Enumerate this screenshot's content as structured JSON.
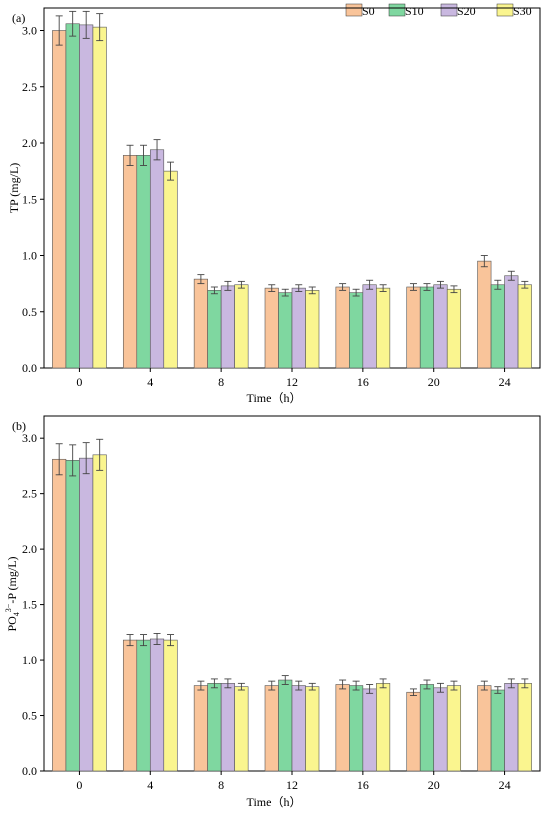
{
  "legend": {
    "items": [
      "S0",
      "S10",
      "S20",
      "S30"
    ],
    "colors": [
      "#F9C49A",
      "#7FD7A0",
      "#C9B8E0",
      "#FAF58F"
    ]
  },
  "chart_data": [
    {
      "type": "bar",
      "panel_label": "(a)",
      "xlabel": "Time（h）",
      "ylabel": "TP (mg/L)",
      "categories": [
        "0",
        "4",
        "8",
        "12",
        "16",
        "20",
        "24"
      ],
      "ylim": [
        0,
        3.2
      ],
      "yticks": [
        "0.0",
        "0.5",
        "1.0",
        "1.5",
        "2.0",
        "2.5",
        "3.0"
      ],
      "series": [
        {
          "name": "S0",
          "values": [
            3.0,
            1.89,
            0.79,
            0.71,
            0.72,
            0.72,
            0.95
          ],
          "errors": [
            0.13,
            0.09,
            0.04,
            0.03,
            0.03,
            0.03,
            0.05
          ]
        },
        {
          "name": "S10",
          "values": [
            3.06,
            1.89,
            0.69,
            0.67,
            0.67,
            0.72,
            0.74
          ],
          "errors": [
            0.11,
            0.09,
            0.03,
            0.03,
            0.03,
            0.03,
            0.04
          ]
        },
        {
          "name": "S20",
          "values": [
            3.05,
            1.94,
            0.73,
            0.71,
            0.74,
            0.74,
            0.82
          ],
          "errors": [
            0.12,
            0.09,
            0.04,
            0.03,
            0.04,
            0.03,
            0.04
          ]
        },
        {
          "name": "S30",
          "values": [
            3.03,
            1.75,
            0.74,
            0.69,
            0.71,
            0.7,
            0.74
          ],
          "errors": [
            0.12,
            0.08,
            0.03,
            0.03,
            0.03,
            0.03,
            0.03
          ]
        }
      ],
      "legend": "top-right"
    },
    {
      "type": "bar",
      "panel_label": "(b)",
      "xlabel": "Time（h）",
      "ylabel_main": "PO",
      "ylabel_sub": "4",
      "ylabel_sup": "3−",
      "ylabel_tail": "-P (mg/L)",
      "categories": [
        "0",
        "4",
        "8",
        "12",
        "16",
        "20",
        "24"
      ],
      "ylim": [
        0,
        3.2
      ],
      "yticks": [
        "0.0",
        "0.5",
        "1.0",
        "1.5",
        "2.0",
        "2.5",
        "3.0"
      ],
      "series": [
        {
          "name": "S0",
          "values": [
            2.81,
            1.18,
            0.77,
            0.77,
            0.78,
            0.71,
            0.77
          ],
          "errors": [
            0.14,
            0.05,
            0.04,
            0.04,
            0.04,
            0.03,
            0.04
          ]
        },
        {
          "name": "S10",
          "values": [
            2.8,
            1.18,
            0.79,
            0.82,
            0.77,
            0.78,
            0.73
          ],
          "errors": [
            0.14,
            0.05,
            0.04,
            0.04,
            0.04,
            0.04,
            0.03
          ]
        },
        {
          "name": "S20",
          "values": [
            2.82,
            1.19,
            0.79,
            0.77,
            0.74,
            0.75,
            0.79
          ],
          "errors": [
            0.14,
            0.05,
            0.04,
            0.04,
            0.04,
            0.04,
            0.04
          ]
        },
        {
          "name": "S30",
          "values": [
            2.85,
            1.18,
            0.76,
            0.76,
            0.79,
            0.77,
            0.79
          ],
          "errors": [
            0.14,
            0.05,
            0.03,
            0.03,
            0.04,
            0.04,
            0.04
          ]
        }
      ]
    }
  ]
}
